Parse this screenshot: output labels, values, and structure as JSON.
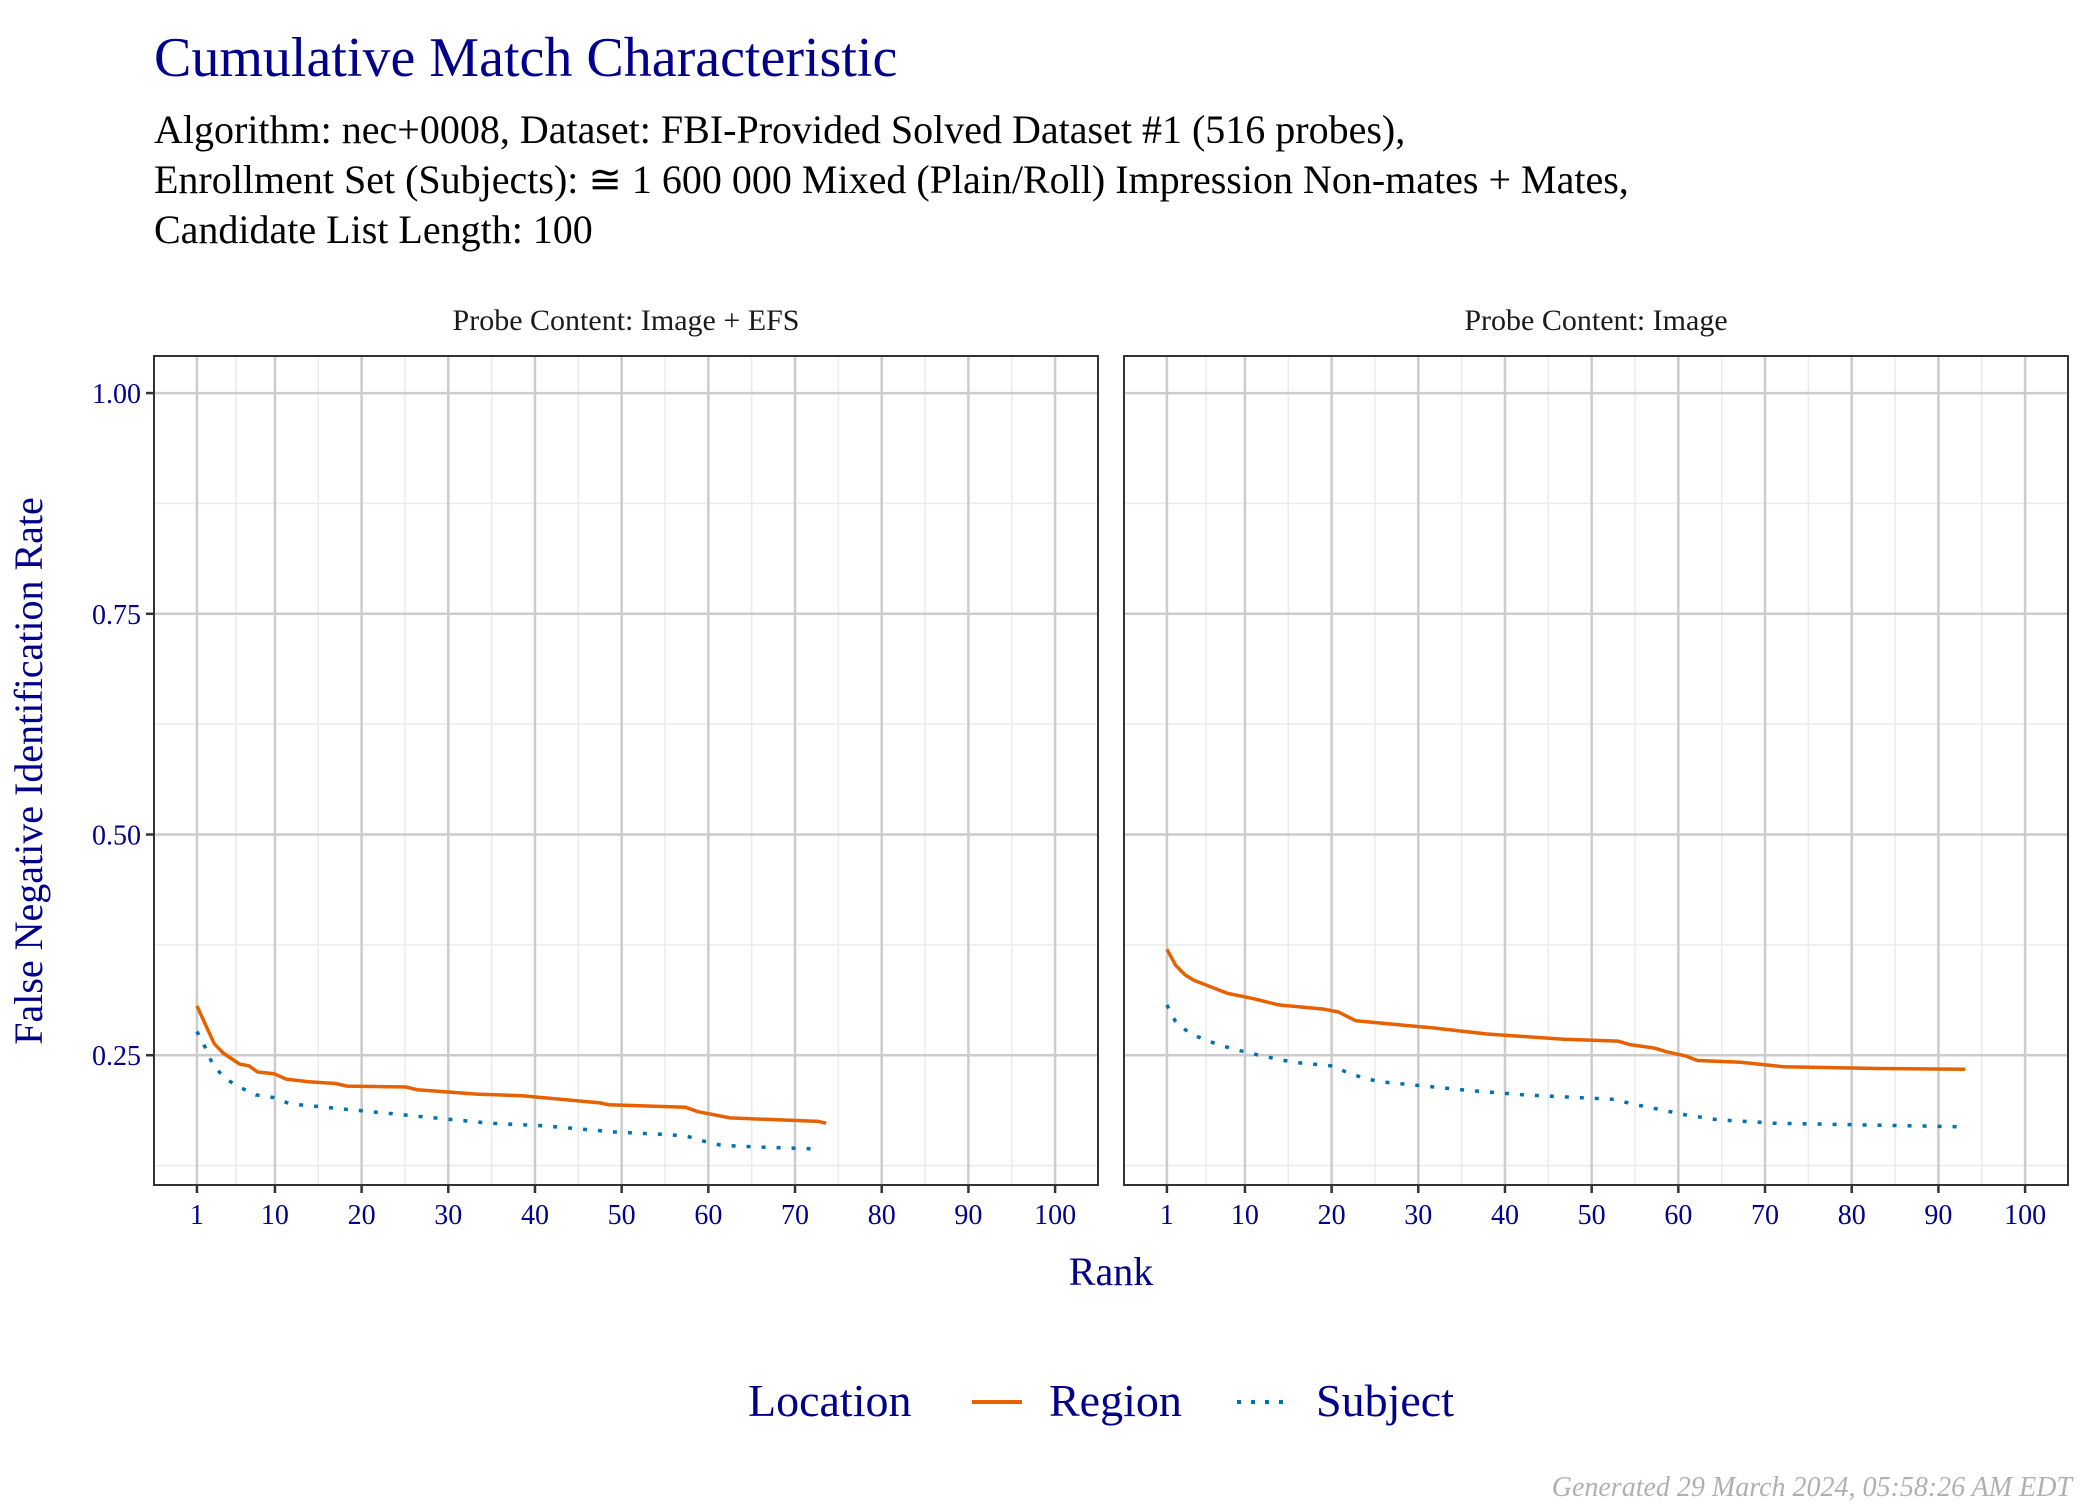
{
  "chart_data": {
    "type": "line",
    "title": "Cumulative Match Characteristic",
    "subtitle_lines": [
      "Algorithm: nec+0008, Dataset: FBI-Provided Solved Dataset #1 (516 probes),",
      "Enrollment Set (Subjects): ≅ 1 600 000 Mixed (Plain/Roll) Impression Non-mates + Mates,",
      "Candidate List Length: 100"
    ],
    "xlabel": "Rank",
    "ylabel": "False Negative Identification Rate",
    "xlim": [
      -3.95,
      104.95
    ],
    "ylim": [
      0.103,
      1.042
    ],
    "x_ticks": [
      1,
      10,
      20,
      30,
      40,
      50,
      60,
      70,
      80,
      90,
      100
    ],
    "x_tick_labels": [
      "1",
      "10",
      "20",
      "30",
      "40",
      "50",
      "60",
      "70",
      "80",
      "90",
      "100"
    ],
    "y_ticks": [
      0.25,
      0.5,
      0.75,
      1.0
    ],
    "y_tick_labels": [
      "0.25",
      "0.50",
      "0.75",
      "1.00"
    ],
    "grid": true,
    "legend": {
      "title": "Location",
      "placement": "bottom",
      "entries": [
        {
          "name": "Region",
          "color": "#E66100",
          "style": "solid"
        },
        {
          "name": "Subject",
          "color": "#0072B2",
          "style": "dotted"
        }
      ]
    },
    "panels": [
      {
        "label": "Probe Content: Image + EFS",
        "series": [
          {
            "name": "Region",
            "x": [
              1,
              3,
              4.1,
              5.9,
              7,
              8,
              9.9,
              11.3,
              13.9,
              17,
              18.3,
              25.1,
              26.4,
              33.3,
              38.5,
              47.5,
              48.5,
              57.4,
              58.8,
              62.5,
              72.7,
              73.6
            ],
            "y": [
              0.306,
              0.263,
              0.252,
              0.24,
              0.238,
              0.231,
              0.229,
              0.223,
              0.22,
              0.218,
              0.215,
              0.214,
              0.211,
              0.206,
              0.204,
              0.196,
              0.194,
              0.191,
              0.186,
              0.179,
              0.175,
              0.173
            ]
          },
          {
            "name": "Subject",
            "x": [
              1,
              2,
              2.8,
              4.2,
              5.9,
              7.8,
              9.9,
              11.7,
              15.9,
              20,
              24.3,
              28.4,
              34.8,
              41,
              49.2,
              55.5,
              57.6,
              59.7,
              61.5,
              65.8,
              72
            ],
            "y": [
              0.277,
              0.258,
              0.24,
              0.224,
              0.214,
              0.205,
              0.202,
              0.195,
              0.191,
              0.187,
              0.183,
              0.179,
              0.173,
              0.17,
              0.163,
              0.16,
              0.158,
              0.152,
              0.148,
              0.146,
              0.144
            ]
          }
        ]
      },
      {
        "label": "Probe Content: Image",
        "series": [
          {
            "name": "Region",
            "x": [
              1,
              2,
              3.1,
              4.1,
              8,
              11,
              13.9,
              19.2,
              20.8,
              22.8,
              27.1,
              31.7,
              37.9,
              46.8,
              53,
              54.4,
              57.3,
              58.6,
              60.9,
              62.2,
              67.2,
              72.1,
              83,
              93.1
            ],
            "y": [
              0.37,
              0.352,
              0.341,
              0.335,
              0.32,
              0.314,
              0.307,
              0.302,
              0.299,
              0.289,
              0.285,
              0.281,
              0.274,
              0.268,
              0.266,
              0.262,
              0.258,
              0.254,
              0.249,
              0.244,
              0.242,
              0.237,
              0.235,
              0.234
            ]
          },
          {
            "name": "Subject",
            "x": [
              1,
              2,
              3.6,
              5.5,
              7.6,
              9.5,
              11.6,
              15.6,
              19.9,
              21.7,
              23.7,
              25.6,
              29.7,
              35.9,
              42.2,
              52.7,
              54.6,
              58.6,
              60.5,
              64.5,
              71.1,
              92.1
            ],
            "y": [
              0.307,
              0.288,
              0.275,
              0.267,
              0.26,
              0.255,
              0.25,
              0.242,
              0.238,
              0.231,
              0.224,
              0.22,
              0.216,
              0.21,
              0.205,
              0.2,
              0.195,
              0.187,
              0.183,
              0.177,
              0.173,
              0.169
            ]
          }
        ]
      }
    ]
  },
  "footer": "Generated 29 March 2024, 05:58:26 AM EDT",
  "colors": {
    "text": "#00008B",
    "region": "#E66100",
    "subject": "#0072B2"
  }
}
